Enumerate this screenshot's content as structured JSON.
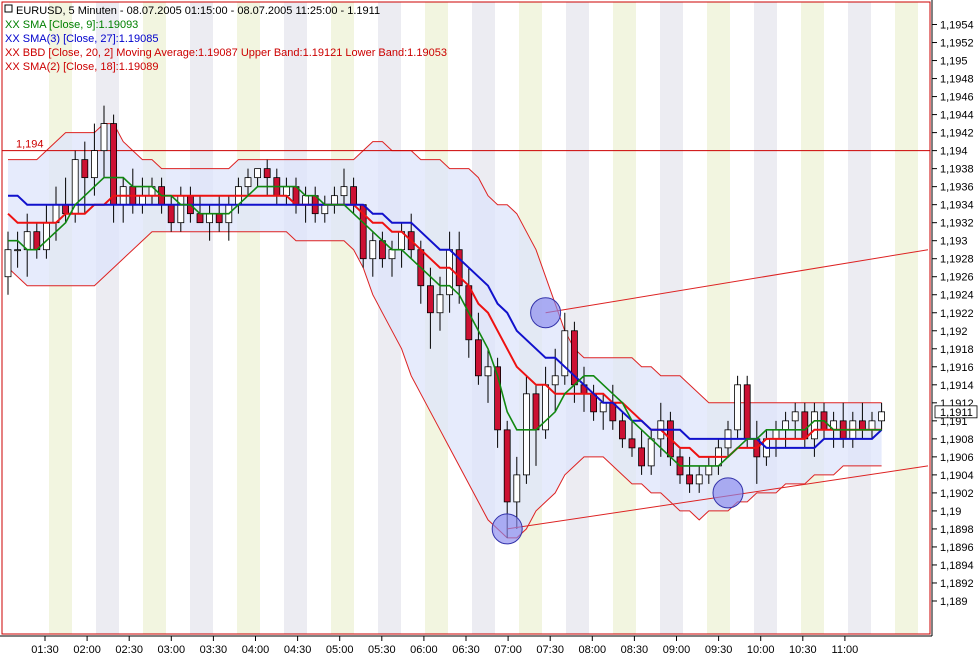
{
  "chart_data": {
    "type": "candlestick",
    "instrument_line": "EURUSD, 5 Minuten - 08.07.2005 01:15:00 - 08.07.2005 11:25:00 - 1.1911",
    "legend": [
      {
        "text": "XX SMA [Close, 9]:1.19093",
        "color": "#008000"
      },
      {
        "text": "XX SMA(3) [Close, 27]:1.19085",
        "color": "#0000cc"
      },
      {
        "text": "XX BBD [Close, 20, 2] Moving Average:1.19087 Upper Band:1.19121 Lower Band:1.19053",
        "color": "#cc0000"
      },
      {
        "text": "XX SMA(2) [Close, 18]:1.19089",
        "color": "#cc0000"
      }
    ],
    "ylim": [
      1.1888,
      1.1956
    ],
    "yticks": [
      "1,1954",
      "1,1952",
      "1,195",
      "1,1948",
      "1,1946",
      "1,1944",
      "1,1942",
      "1,194",
      "1,1938",
      "1,1936",
      "1,1934",
      "1,1932",
      "1,193",
      "1,1928",
      "1,1926",
      "1,1924",
      "1,1922",
      "1,192",
      "1,1918",
      "1,1916",
      "1,1914",
      "1,1912",
      "1,191",
      "1,1908",
      "1,1906",
      "1,1904",
      "1,1902",
      "1,19",
      "1,1898",
      "1,1896",
      "1,1894",
      "1,1892",
      "1,189"
    ],
    "xticks": [
      "01:30",
      "02:00",
      "02:30",
      "03:00",
      "03:30",
      "04:00",
      "04:30",
      "05:00",
      "05:30",
      "06:00",
      "06:30",
      "07:00",
      "07:30",
      "08:00",
      "08:30",
      "09:00",
      "09:30",
      "10:00",
      "10:30",
      "11:00"
    ],
    "hline": {
      "value": 1.194,
      "label": "1,194"
    },
    "last_price_label": "1,1911",
    "last_price": 1.1911,
    "candles": [
      [
        1.1926,
        1.1931,
        1.1924,
        1.1929
      ],
      [
        1.1929,
        1.1931,
        1.1927,
        1.1929
      ],
      [
        1.1929,
        1.1933,
        1.1926,
        1.1931
      ],
      [
        1.1931,
        1.1932,
        1.1928,
        1.1929
      ],
      [
        1.1929,
        1.1934,
        1.1928,
        1.1932
      ],
      [
        1.1932,
        1.1936,
        1.193,
        1.1934
      ],
      [
        1.1934,
        1.1937,
        1.1932,
        1.1933
      ],
      [
        1.1933,
        1.194,
        1.1932,
        1.1939
      ],
      [
        1.1939,
        1.1941,
        1.1933,
        1.1937
      ],
      [
        1.1937,
        1.1943,
        1.1935,
        1.194
      ],
      [
        1.194,
        1.1945,
        1.1937,
        1.1943
      ],
      [
        1.1943,
        1.1944,
        1.1932,
        1.1934
      ],
      [
        1.1934,
        1.1937,
        1.1932,
        1.1936
      ],
      [
        1.1936,
        1.1938,
        1.1933,
        1.1934
      ],
      [
        1.1934,
        1.1937,
        1.1933,
        1.1935
      ],
      [
        1.1935,
        1.1937,
        1.1934,
        1.1936
      ],
      [
        1.1936,
        1.1937,
        1.1933,
        1.1934
      ],
      [
        1.1934,
        1.1935,
        1.1931,
        1.1932
      ],
      [
        1.1932,
        1.1936,
        1.1931,
        1.1935
      ],
      [
        1.1935,
        1.1936,
        1.1932,
        1.1933
      ],
      [
        1.1933,
        1.1935,
        1.1932,
        1.1932
      ],
      [
        1.1932,
        1.1934,
        1.193,
        1.1933
      ],
      [
        1.1933,
        1.1935,
        1.1931,
        1.1932
      ],
      [
        1.1932,
        1.1935,
        1.193,
        1.1934
      ],
      [
        1.1934,
        1.1937,
        1.1933,
        1.1936
      ],
      [
        1.1936,
        1.1938,
        1.1935,
        1.1937
      ],
      [
        1.1937,
        1.1938,
        1.1936,
        1.1938
      ],
      [
        1.1938,
        1.1939,
        1.1935,
        1.1937
      ],
      [
        1.1937,
        1.1938,
        1.1934,
        1.1935
      ],
      [
        1.1935,
        1.1937,
        1.1934,
        1.1936
      ],
      [
        1.1936,
        1.1937,
        1.1933,
        1.1934
      ],
      [
        1.1934,
        1.1936,
        1.1932,
        1.1935
      ],
      [
        1.1935,
        1.1936,
        1.1932,
        1.1933
      ],
      [
        1.1933,
        1.1935,
        1.1932,
        1.1934
      ],
      [
        1.1934,
        1.1936,
        1.1933,
        1.1935
      ],
      [
        1.1935,
        1.1938,
        1.1934,
        1.1936
      ],
      [
        1.1936,
        1.1937,
        1.1933,
        1.1934
      ],
      [
        1.1934,
        1.1934,
        1.1927,
        1.1928
      ],
      [
        1.1928,
        1.1931,
        1.1926,
        1.193
      ],
      [
        1.193,
        1.1931,
        1.1927,
        1.1928
      ],
      [
        1.1928,
        1.193,
        1.1926,
        1.1929
      ],
      [
        1.1929,
        1.1932,
        1.1927,
        1.1931
      ],
      [
        1.1931,
        1.1933,
        1.1928,
        1.1929
      ],
      [
        1.1929,
        1.193,
        1.1923,
        1.1925
      ],
      [
        1.1925,
        1.1927,
        1.1918,
        1.1922
      ],
      [
        1.1922,
        1.1926,
        1.192,
        1.1924
      ],
      [
        1.1924,
        1.1931,
        1.1922,
        1.1929
      ],
      [
        1.1929,
        1.1931,
        1.1923,
        1.1925
      ],
      [
        1.1925,
        1.1927,
        1.1917,
        1.1919
      ],
      [
        1.1919,
        1.1922,
        1.1914,
        1.1915
      ],
      [
        1.1915,
        1.1918,
        1.1912,
        1.1916
      ],
      [
        1.1916,
        1.1917,
        1.1907,
        1.1909
      ],
      [
        1.1909,
        1.191,
        1.1897,
        1.1901
      ],
      [
        1.1901,
        1.1906,
        1.1898,
        1.1904
      ],
      [
        1.1904,
        1.1915,
        1.1903,
        1.1913
      ],
      [
        1.1913,
        1.1914,
        1.1905,
        1.1909
      ],
      [
        1.1909,
        1.1916,
        1.1908,
        1.1914
      ],
      [
        1.1914,
        1.1918,
        1.1911,
        1.1915
      ],
      [
        1.1915,
        1.1922,
        1.1914,
        1.192
      ],
      [
        1.192,
        1.1921,
        1.1912,
        1.1914
      ],
      [
        1.1914,
        1.1916,
        1.1911,
        1.1913
      ],
      [
        1.1913,
        1.1914,
        1.191,
        1.1911
      ],
      [
        1.1911,
        1.1913,
        1.1909,
        1.1912
      ],
      [
        1.1912,
        1.1914,
        1.1909,
        1.191
      ],
      [
        1.191,
        1.1911,
        1.1907,
        1.1908
      ],
      [
        1.1908,
        1.191,
        1.1906,
        1.1907
      ],
      [
        1.1907,
        1.1909,
        1.1904,
        1.1905
      ],
      [
        1.1905,
        1.1909,
        1.1904,
        1.1908
      ],
      [
        1.1908,
        1.1912,
        1.1906,
        1.191
      ],
      [
        1.191,
        1.1911,
        1.1905,
        1.1906
      ],
      [
        1.1906,
        1.1907,
        1.1903,
        1.1904
      ],
      [
        1.1904,
        1.1906,
        1.1902,
        1.1903
      ],
      [
        1.1903,
        1.1905,
        1.1902,
        1.1904
      ],
      [
        1.1904,
        1.1906,
        1.1903,
        1.1905
      ],
      [
        1.1905,
        1.1908,
        1.1904,
        1.1907
      ],
      [
        1.1907,
        1.191,
        1.1906,
        1.1909
      ],
      [
        1.1909,
        1.1915,
        1.1908,
        1.1914
      ],
      [
        1.1914,
        1.1915,
        1.1907,
        1.1908
      ],
      [
        1.1908,
        1.191,
        1.1903,
        1.1906
      ],
      [
        1.1906,
        1.1909,
        1.1905,
        1.1908
      ],
      [
        1.1908,
        1.191,
        1.1906,
        1.1909
      ],
      [
        1.1909,
        1.1911,
        1.1907,
        1.191
      ],
      [
        1.191,
        1.1912,
        1.1908,
        1.1911
      ],
      [
        1.1911,
        1.1912,
        1.1907,
        1.1908
      ],
      [
        1.1908,
        1.1912,
        1.1906,
        1.1911
      ],
      [
        1.1911,
        1.1912,
        1.1908,
        1.1909
      ],
      [
        1.1909,
        1.1911,
        1.1907,
        1.191
      ],
      [
        1.191,
        1.1912,
        1.1907,
        1.1908
      ],
      [
        1.1908,
        1.1911,
        1.1907,
        1.191
      ],
      [
        1.191,
        1.1912,
        1.1908,
        1.1909
      ],
      [
        1.1909,
        1.1911,
        1.1908,
        1.191
      ],
      [
        1.191,
        1.1912,
        1.1909,
        1.1911
      ]
    ],
    "sma9": [
      1.193,
      1.193,
      1.1929,
      1.1929,
      1.193,
      1.1931,
      1.1932,
      1.1934,
      1.1935,
      1.1936,
      1.1937,
      1.1937,
      1.1937,
      1.1936,
      1.1936,
      1.1936,
      1.1935,
      1.1935,
      1.1934,
      1.1934,
      1.1933,
      1.1933,
      1.1933,
      1.1933,
      1.1934,
      1.1935,
      1.1936,
      1.1936,
      1.1936,
      1.1936,
      1.1936,
      1.1935,
      1.1935,
      1.1934,
      1.1934,
      1.1934,
      1.1933,
      1.1932,
      1.1931,
      1.193,
      1.1929,
      1.1929,
      1.1928,
      1.1927,
      1.1926,
      1.1925,
      1.1925,
      1.1924,
      1.1922,
      1.192,
      1.1918,
      1.1915,
      1.1911,
      1.1909,
      1.1909,
      1.1909,
      1.191,
      1.1911,
      1.1913,
      1.1914,
      1.1915,
      1.1915,
      1.1914,
      1.1913,
      1.1912,
      1.191,
      1.1909,
      1.1908,
      1.1907,
      1.1906,
      1.1905,
      1.1905,
      1.1905,
      1.1905,
      1.1905,
      1.1906,
      1.1907,
      1.1908,
      1.1908,
      1.1909,
      1.1909,
      1.1909,
      1.1909,
      1.1909,
      1.191,
      1.191,
      1.1909,
      1.1909,
      1.1909,
      1.1909,
      1.1909,
      1.1909
    ],
    "bb_mid": [
      1.1933,
      1.1932,
      1.1932,
      1.1932,
      1.1932,
      1.1932,
      1.1933,
      1.1933,
      1.1933,
      1.1934,
      1.1934,
      1.1935,
      1.1935,
      1.1935,
      1.1935,
      1.1935,
      1.1935,
      1.1935,
      1.1935,
      1.1935,
      1.1935,
      1.1935,
      1.1935,
      1.1935,
      1.1935,
      1.1935,
      1.1935,
      1.1935,
      1.1935,
      1.1935,
      1.1934,
      1.1934,
      1.1934,
      1.1934,
      1.1934,
      1.1934,
      1.1934,
      1.1933,
      1.1932,
      1.1932,
      1.1931,
      1.1931,
      1.193,
      1.1929,
      1.1928,
      1.1927,
      1.1927,
      1.1926,
      1.1925,
      1.1923,
      1.1922,
      1.192,
      1.1918,
      1.1916,
      1.1915,
      1.1914,
      1.1914,
      1.1913,
      1.1913,
      1.1913,
      1.1913,
      1.1913,
      1.1913,
      1.1912,
      1.1912,
      1.1911,
      1.191,
      1.1909,
      1.1909,
      1.1908,
      1.1907,
      1.1907,
      1.1906,
      1.1906,
      1.1906,
      1.1906,
      1.1907,
      1.1907,
      1.1907,
      1.1908,
      1.1908,
      1.1908,
      1.1908,
      1.1908,
      1.1909,
      1.1909,
      1.1909,
      1.1909,
      1.1909,
      1.1909,
      1.1909,
      1.1909
    ],
    "bb_upper": [
      1.1939,
      1.1939,
      1.1939,
      1.1939,
      1.194,
      1.1941,
      1.1942,
      1.1942,
      1.1942,
      1.1942,
      1.1943,
      1.1943,
      1.1941,
      1.194,
      1.1939,
      1.1939,
      1.1938,
      1.1938,
      1.1938,
      1.1938,
      1.1938,
      1.1938,
      1.1938,
      1.1938,
      1.1939,
      1.1939,
      1.1939,
      1.1939,
      1.1939,
      1.1939,
      1.1939,
      1.1939,
      1.1939,
      1.1939,
      1.1939,
      1.1939,
      1.1939,
      1.194,
      1.1941,
      1.1941,
      1.194,
      1.194,
      1.194,
      1.1939,
      1.1939,
      1.1939,
      1.1938,
      1.1938,
      1.1938,
      1.1937,
      1.1935,
      1.1934,
      1.1934,
      1.1933,
      1.1931,
      1.1929,
      1.1926,
      1.1923,
      1.192,
      1.1918,
      1.1917,
      1.1917,
      1.1917,
      1.1917,
      1.1917,
      1.1917,
      1.1916,
      1.1916,
      1.1915,
      1.1915,
      1.1915,
      1.1914,
      1.1913,
      1.1912,
      1.1912,
      1.1912,
      1.1912,
      1.1912,
      1.1912,
      1.1912,
      1.1912,
      1.1912,
      1.1912,
      1.1912,
      1.1912,
      1.1912,
      1.1912,
      1.1912,
      1.1912,
      1.1912,
      1.1912,
      1.1912
    ],
    "bb_lower": [
      1.1927,
      1.1926,
      1.1925,
      1.1925,
      1.1925,
      1.1925,
      1.1925,
      1.1925,
      1.1925,
      1.1925,
      1.1926,
      1.1927,
      1.1928,
      1.1929,
      1.193,
      1.1931,
      1.1931,
      1.1931,
      1.1931,
      1.1931,
      1.1931,
      1.1931,
      1.1931,
      1.1931,
      1.1931,
      1.1931,
      1.1931,
      1.1931,
      1.1931,
      1.1931,
      1.193,
      1.193,
      1.193,
      1.193,
      1.193,
      1.193,
      1.1929,
      1.1927,
      1.1924,
      1.1922,
      1.192,
      1.1918,
      1.1915,
      1.1913,
      1.1911,
      1.1909,
      1.1907,
      1.1905,
      1.1903,
      1.1901,
      1.1899,
      1.1898,
      1.1897,
      1.1897,
      1.1898,
      1.19,
      1.1901,
      1.1902,
      1.1904,
      1.1905,
      1.1906,
      1.1906,
      1.1906,
      1.1905,
      1.1904,
      1.1903,
      1.1903,
      1.1902,
      1.1902,
      1.1901,
      1.19,
      1.19,
      1.1899,
      1.19,
      1.19,
      1.19,
      1.1901,
      1.1901,
      1.1902,
      1.1902,
      1.1902,
      1.1903,
      1.1903,
      1.1903,
      1.1904,
      1.1904,
      1.1904,
      1.1905,
      1.1905,
      1.1905,
      1.1905,
      1.1905
    ],
    "sma27": [
      1.1935,
      1.1935,
      1.1934,
      1.1934,
      1.1934,
      1.1934,
      1.1934,
      1.1934,
      1.1934,
      1.1934,
      1.1934,
      1.1934,
      1.1934,
      1.1934,
      1.1934,
      1.1934,
      1.1934,
      1.1934,
      1.1934,
      1.1934,
      1.1934,
      1.1934,
      1.1934,
      1.1934,
      1.1934,
      1.1934,
      1.1934,
      1.1934,
      1.1934,
      1.1934,
      1.1934,
      1.1934,
      1.1934,
      1.1934,
      1.1934,
      1.1934,
      1.1934,
      1.1934,
      1.1933,
      1.1933,
      1.1932,
      1.1932,
      1.1932,
      1.1931,
      1.193,
      1.1929,
      1.1929,
      1.1928,
      1.1927,
      1.1926,
      1.1925,
      1.1923,
      1.1922,
      1.192,
      1.1919,
      1.1918,
      1.1917,
      1.1917,
      1.1916,
      1.1915,
      1.1914,
      1.1913,
      1.1912,
      1.1912,
      1.1911,
      1.191,
      1.191,
      1.1909,
      1.1909,
      1.1909,
      1.1909,
      1.1908,
      1.1908,
      1.1908,
      1.1908,
      1.1908,
      1.1908,
      1.1908,
      1.1908,
      1.1907,
      1.1907,
      1.1907,
      1.1907,
      1.1907,
      1.1907,
      1.1908,
      1.1908,
      1.1908,
      1.1908,
      1.1908,
      1.1908,
      1.1909
    ],
    "trendlines": [
      {
        "from": [
          52,
          1.1898
        ],
        "to": [
          93,
          1.1905
        ]
      },
      {
        "from": [
          56,
          1.1922
        ],
        "to": [
          93,
          1.1929
        ]
      }
    ],
    "markers": [
      {
        "i": 52,
        "value": 1.1898
      },
      {
        "i": 56,
        "value": 1.1922
      },
      {
        "i": 75,
        "value": 1.1902
      }
    ]
  }
}
